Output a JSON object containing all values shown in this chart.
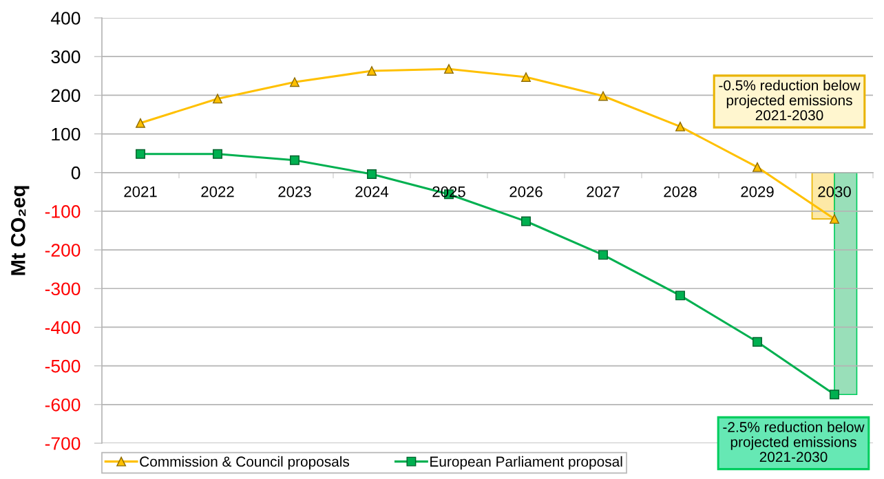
{
  "chart_data": {
    "type": "line",
    "ylabel": "Mt CO₂eq",
    "categories": [
      "2021",
      "2022",
      "2023",
      "2024",
      "2025",
      "2026",
      "2027",
      "2028",
      "2029",
      "2030"
    ],
    "series": [
      {
        "name": "Commission & Council proposals",
        "color": "#ffc000",
        "marker": "triangle",
        "values": [
          128,
          191,
          234,
          263,
          268,
          247,
          198,
          119,
          14,
          -120
        ]
      },
      {
        "name": "European Parliament proposal",
        "color": "#00b050",
        "marker": "square",
        "values": [
          48,
          48,
          32,
          -4,
          -56,
          -126,
          -213,
          -318,
          -438,
          -574
        ]
      },
      {
        "type": "bar",
        "color": "#fde9a6",
        "values": [
          null,
          null,
          null,
          null,
          null,
          null,
          null,
          null,
          null,
          -120
        ]
      },
      {
        "type": "bar",
        "color": "#99dfb9",
        "values": [
          null,
          null,
          null,
          null,
          null,
          null,
          null,
          null,
          null,
          -574
        ]
      }
    ],
    "ylim": [
      -700,
      400
    ],
    "yticks": [
      400,
      300,
      200,
      100,
      0,
      -100,
      -200,
      -300,
      -400,
      -500,
      -600,
      -700
    ],
    "grid": "y",
    "legend": "bottom",
    "line_style": "solid",
    "annotations": [
      "-0.5% reduction below\nprojected emissions\n2021-2030",
      "-2.5% reduction below\nprojected emissions\n2021-2030"
    ]
  }
}
